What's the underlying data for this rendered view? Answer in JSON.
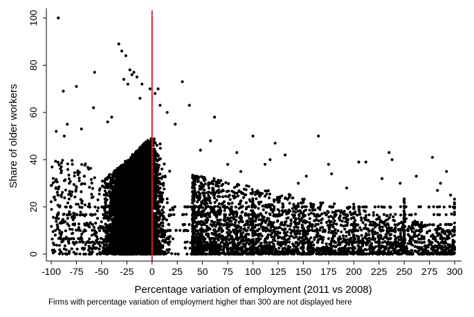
{
  "chart_data": {
    "type": "scatter",
    "xlabel": "Percentage variation of employment (2011 vs 2008)",
    "ylabel": "Share of older workers",
    "xlim": [
      -100,
      300
    ],
    "ylim": [
      0,
      100
    ],
    "x_ticks": [
      "-100",
      "-75",
      "-50",
      "-25",
      "0",
      "25",
      "50",
      "75",
      "100",
      "125",
      "150",
      "175",
      "200",
      "225",
      "250",
      "275",
      "300"
    ],
    "y_ticks": [
      "0",
      "20",
      "40",
      "60",
      "80",
      "100"
    ],
    "reference_line": {
      "x": 0,
      "color": "#e41a1c"
    },
    "point_color": "#000000",
    "grid": false,
    "legend": "none",
    "series": [
      {
        "points": [
          [
            -93,
            100
          ],
          [
            -33,
            89
          ],
          [
            -30,
            86
          ],
          [
            -26,
            84
          ],
          [
            -22,
            78
          ],
          [
            -18,
            77
          ],
          [
            -20,
            76
          ],
          [
            -15,
            75
          ],
          [
            -10,
            72
          ],
          [
            -2,
            70
          ],
          [
            -28,
            74
          ],
          [
            -24,
            72
          ],
          [
            6,
            70
          ],
          [
            30,
            73
          ],
          [
            -57,
            77
          ],
          [
            -75,
            71
          ],
          [
            -88,
            69
          ],
          [
            -84,
            55
          ],
          [
            -58,
            62
          ],
          [
            -40,
            58
          ],
          [
            -44,
            56
          ],
          [
            62,
            58
          ],
          [
            37,
            63
          ],
          [
            23,
            55
          ],
          [
            3,
            68
          ],
          [
            8,
            63
          ],
          [
            15,
            60
          ],
          [
            -12,
            66
          ],
          [
            -70,
            53
          ],
          [
            -95,
            52
          ],
          [
            -87,
            50
          ],
          [
            -79,
            38
          ],
          [
            -90,
            37
          ],
          [
            -82,
            30
          ],
          [
            -96,
            23
          ],
          [
            100,
            50
          ],
          [
            165,
            50
          ],
          [
            122,
            47
          ],
          [
            132,
            42
          ],
          [
            58,
            48
          ],
          [
            48,
            44
          ],
          [
            84,
            43
          ],
          [
            112,
            38
          ],
          [
            117,
            40
          ],
          [
            175,
            38
          ],
          [
            205,
            39
          ],
          [
            212,
            39
          ],
          [
            235,
            43
          ],
          [
            238,
            40
          ],
          [
            278,
            41
          ],
          [
            292,
            35
          ],
          [
            228,
            32
          ],
          [
            246,
            30
          ],
          [
            262,
            33
          ],
          [
            286,
            30
          ],
          [
            296,
            25
          ],
          [
            300,
            20
          ],
          [
            297,
            17
          ],
          [
            252,
            15
          ],
          [
            270,
            12
          ],
          [
            283,
            27
          ],
          [
            221,
            20
          ],
          [
            193,
            28
          ],
          [
            178,
            34
          ],
          [
            153,
            33
          ],
          [
            145,
            30
          ],
          [
            137,
            25
          ],
          [
            125,
            22
          ],
          [
            88,
            35
          ],
          [
            75,
            38
          ]
        ]
      }
    ]
  },
  "note": "Firms with percentage variation of employment higher than 300 are not displayed here"
}
